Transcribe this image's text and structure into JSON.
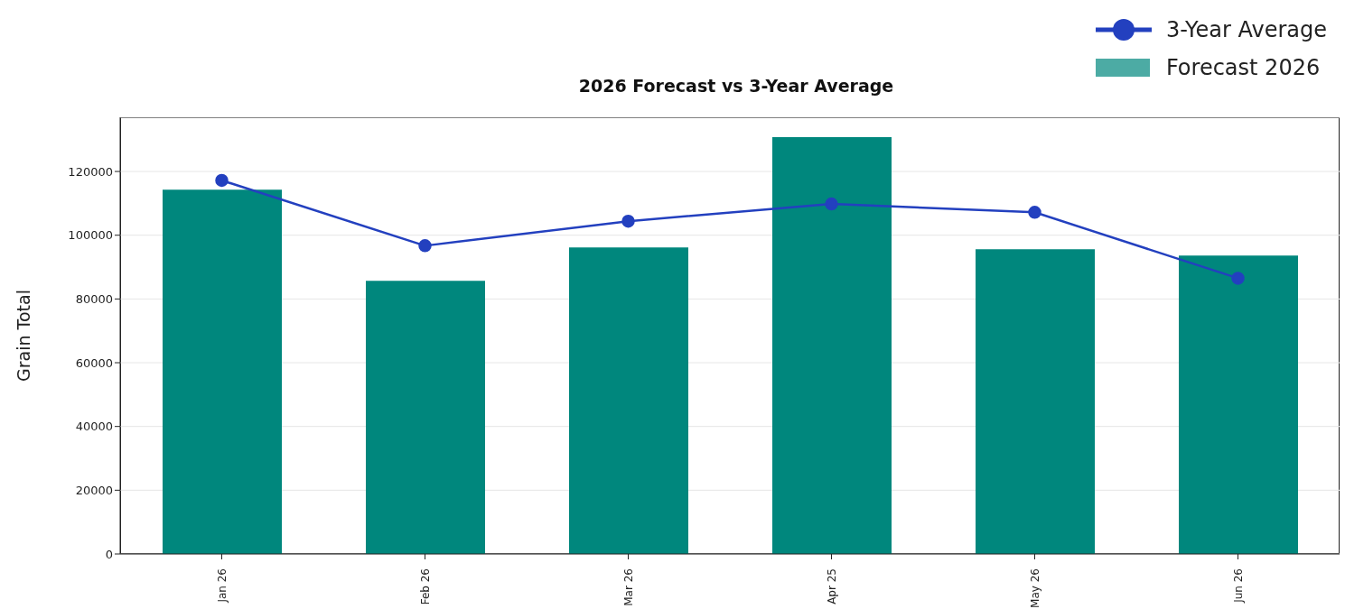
{
  "chart_data": {
    "type": "bar",
    "title": "2026 Forecast vs 3-Year Average",
    "ylabel": "Grain Total",
    "categories": [
      "Jan 26",
      "Feb 26",
      "Mar 26",
      "Apr 25",
      "May 26",
      "Jun 26"
    ],
    "series": [
      {
        "name": "3-Year Average",
        "type": "line",
        "color": "#2340bf",
        "values": [
          117200,
          96700,
          104400,
          109800,
          107200,
          86500
        ]
      },
      {
        "name": "Forecast 2026",
        "color": "#00877d",
        "values": [
          114300,
          85700,
          96200,
          130800,
          95600,
          93600
        ]
      }
    ],
    "ylim": [
      0,
      137000
    ],
    "yticks": [
      0,
      20000,
      40000,
      60000,
      80000,
      100000,
      120000
    ],
    "grid": "y",
    "legend": "top right",
    "marker": "circle",
    "line_style": "solid"
  }
}
